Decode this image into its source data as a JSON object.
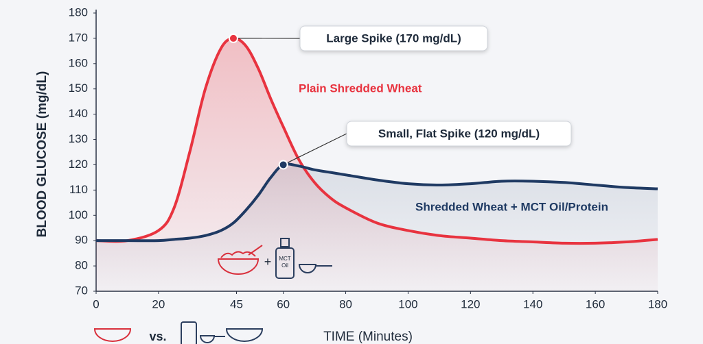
{
  "chart_data": {
    "type": "line",
    "y_label": "BLOOD GLUCOSE (mg/dL)",
    "x_label": "TIME (Minutes)",
    "x": [
      0,
      10,
      20,
      25,
      30,
      35,
      40,
      44,
      48,
      52,
      56,
      60,
      65,
      70,
      75,
      80,
      90,
      100,
      110,
      120,
      130,
      140,
      150,
      160,
      170,
      180
    ],
    "series": [
      {
        "name": "Plain Shredded Wheat",
        "color": "#e8333f",
        "values": [
          90,
          90,
          94,
          103,
          125,
          150,
          166,
          170,
          167,
          158,
          146,
          135,
          122,
          113,
          107,
          103,
          97,
          94,
          92,
          91,
          90,
          89.5,
          89,
          89,
          89.5,
          90.5
        ]
      },
      {
        "name": "Shredded Wheat + MCT Oil/Protein",
        "color": "#1f3a63",
        "values": [
          90,
          90,
          90,
          90.5,
          91,
          92,
          94,
          97,
          102,
          108,
          115,
          120,
          119.5,
          118,
          117,
          116,
          114,
          112.5,
          112,
          112.5,
          113.5,
          113.5,
          113,
          112,
          111,
          110.5
        ]
      }
    ],
    "annotations": [
      "Large Spike (170 mg/dL)",
      "Small, Flat Spike (120 mg/dL)"
    ],
    "xlim": [
      0,
      180
    ],
    "xticks": [
      0,
      20,
      45,
      60,
      80,
      100,
      120,
      140,
      160,
      180
    ],
    "ylim": [
      70,
      180
    ],
    "yticks": [
      70,
      80,
      90,
      100,
      110,
      120,
      130,
      140,
      150,
      160,
      170,
      180
    ],
    "icons": {
      "plus": "+",
      "vs": "vs.",
      "bottle_top": "MCT",
      "bottle_bottom": "Oil"
    }
  }
}
